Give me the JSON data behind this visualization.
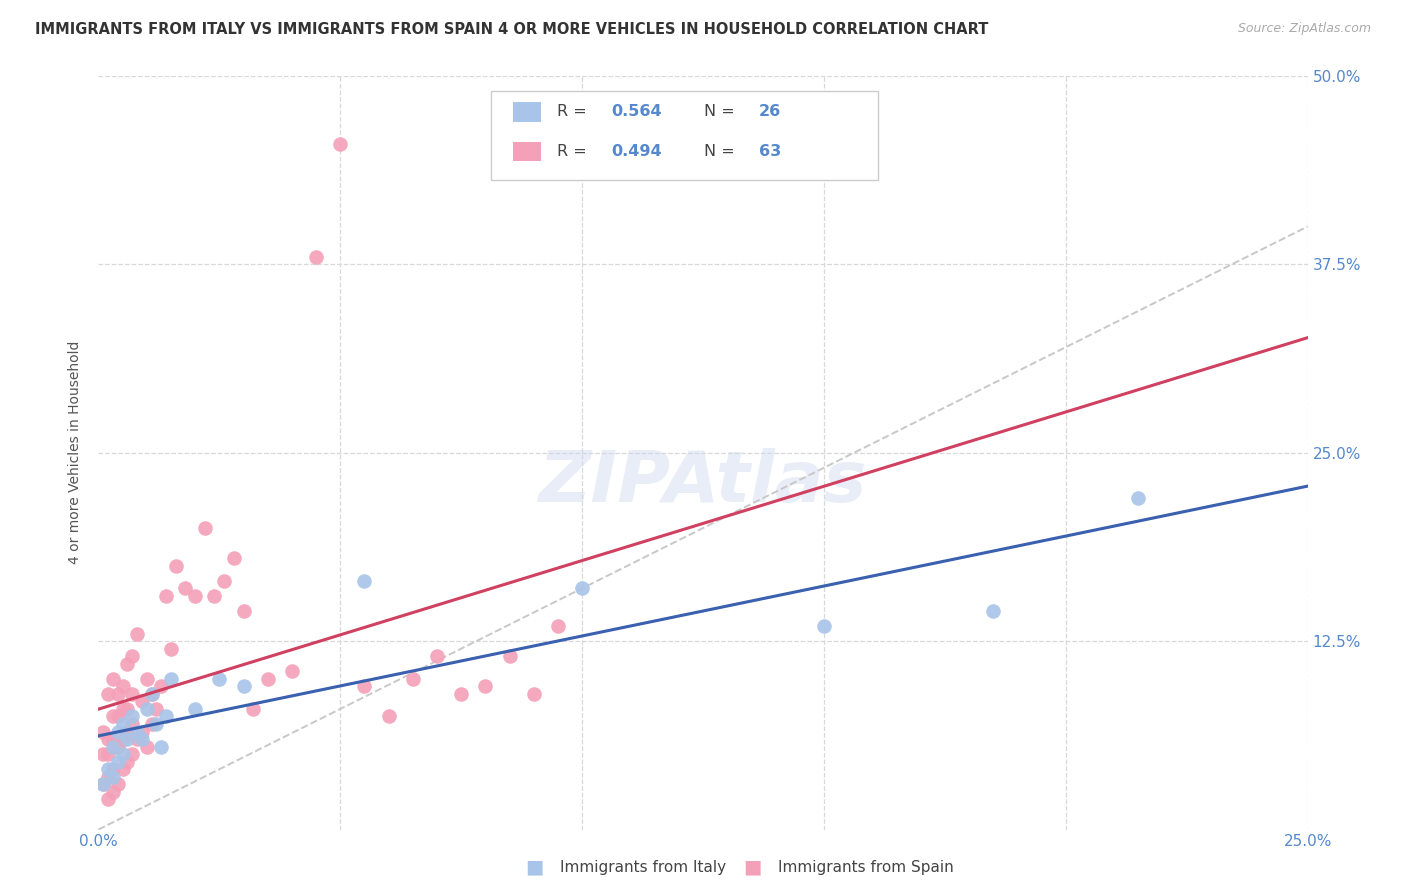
{
  "title": "IMMIGRANTS FROM ITALY VS IMMIGRANTS FROM SPAIN 4 OR MORE VEHICLES IN HOUSEHOLD CORRELATION CHART",
  "source": "Source: ZipAtlas.com",
  "ylabel": "4 or more Vehicles in Household",
  "watermark": "ZIPAtlas",
  "xlim": [
    0.0,
    0.25
  ],
  "ylim": [
    0.0,
    0.5
  ],
  "italy_R": "0.564",
  "italy_N": "26",
  "spain_R": "0.494",
  "spain_N": "63",
  "legend_italy_label": "Immigrants from Italy",
  "legend_spain_label": "Immigrants from Spain",
  "italy_color": "#a8c4e8",
  "spain_color": "#f4a0b8",
  "italy_line_color": "#3a60b0",
  "spain_line_color": "#d04060",
  "trendline_dashed_color": "#c8c8c8",
  "background_color": "#ffffff",
  "grid_color": "#d8d8d8",
  "italy_x": [
    0.001,
    0.002,
    0.003,
    0.003,
    0.004,
    0.004,
    0.005,
    0.005,
    0.006,
    0.007,
    0.008,
    0.009,
    0.01,
    0.011,
    0.012,
    0.013,
    0.014,
    0.015,
    0.02,
    0.025,
    0.03,
    0.055,
    0.1,
    0.15,
    0.185,
    0.215
  ],
  "italy_y": [
    0.03,
    0.04,
    0.035,
    0.055,
    0.045,
    0.065,
    0.05,
    0.07,
    0.06,
    0.075,
    0.065,
    0.06,
    0.08,
    0.09,
    0.07,
    0.055,
    0.075,
    0.1,
    0.08,
    0.1,
    0.095,
    0.165,
    0.16,
    0.135,
    0.145,
    0.22
  ],
  "spain_x": [
    0.001,
    0.001,
    0.001,
    0.002,
    0.002,
    0.002,
    0.002,
    0.002,
    0.003,
    0.003,
    0.003,
    0.003,
    0.003,
    0.004,
    0.004,
    0.004,
    0.004,
    0.005,
    0.005,
    0.005,
    0.005,
    0.006,
    0.006,
    0.006,
    0.006,
    0.007,
    0.007,
    0.007,
    0.007,
    0.008,
    0.008,
    0.009,
    0.009,
    0.01,
    0.01,
    0.011,
    0.011,
    0.012,
    0.013,
    0.014,
    0.015,
    0.016,
    0.018,
    0.02,
    0.022,
    0.024,
    0.026,
    0.028,
    0.03,
    0.032,
    0.035,
    0.04,
    0.045,
    0.05,
    0.055,
    0.06,
    0.065,
    0.07,
    0.075,
    0.08,
    0.085,
    0.09,
    0.095
  ],
  "spain_y": [
    0.03,
    0.05,
    0.065,
    0.02,
    0.035,
    0.05,
    0.06,
    0.09,
    0.025,
    0.04,
    0.06,
    0.075,
    0.1,
    0.03,
    0.055,
    0.075,
    0.09,
    0.04,
    0.06,
    0.08,
    0.095,
    0.045,
    0.065,
    0.08,
    0.11,
    0.05,
    0.07,
    0.09,
    0.115,
    0.06,
    0.13,
    0.065,
    0.085,
    0.055,
    0.1,
    0.07,
    0.09,
    0.08,
    0.095,
    0.155,
    0.12,
    0.175,
    0.16,
    0.155,
    0.2,
    0.155,
    0.165,
    0.18,
    0.145,
    0.08,
    0.1,
    0.105,
    0.38,
    0.455,
    0.095,
    0.075,
    0.1,
    0.115,
    0.09,
    0.095,
    0.115,
    0.09,
    0.135
  ]
}
